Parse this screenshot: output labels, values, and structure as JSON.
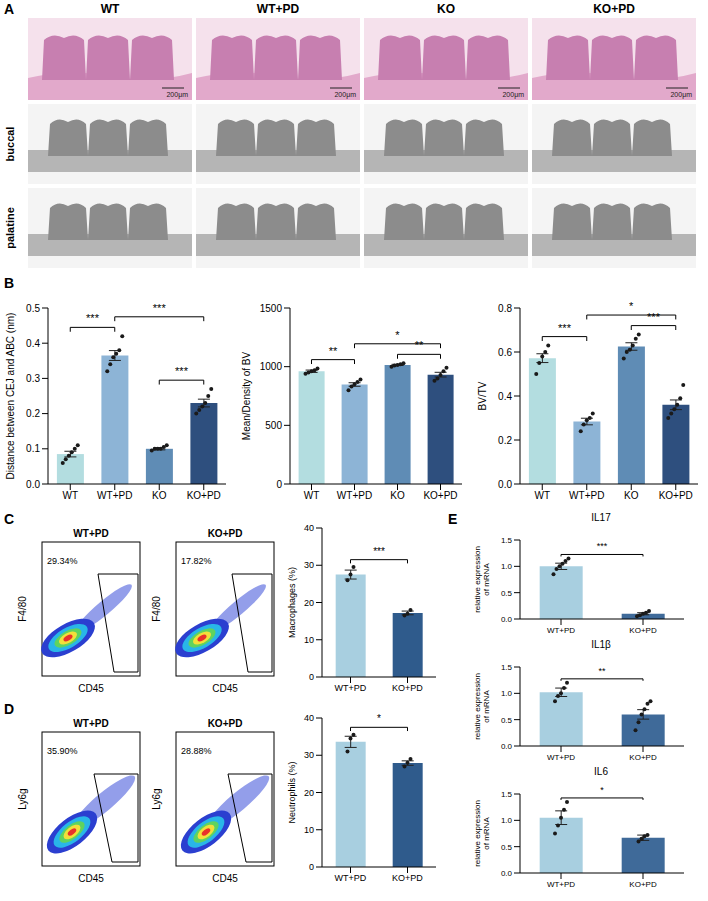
{
  "panel_A": {
    "letter": "A",
    "columns": [
      "WT",
      "WT+PD",
      "KO",
      "KO+PD"
    ],
    "rows": [
      "buccal",
      "palatine"
    ],
    "scale_bar": "200μm"
  },
  "flow_plots": [
    {
      "x_label": "CD45",
      "y_label": "F4/80",
      "plots": [
        {
          "title": "WT+PD",
          "gate": "29.34%"
        },
        {
          "title": "KO+PD",
          "gate": "17.82%"
        }
      ]
    },
    {
      "x_label": "CD45",
      "y_label": "Ly6g",
      "plots": [
        {
          "title": "WT+PD",
          "gate": "35.90%"
        },
        {
          "title": "KO+PD",
          "gate": "28.88%"
        }
      ]
    }
  ],
  "chart_data": [
    {
      "panel": "B",
      "type": "bar",
      "y_label": "Distance between CEJ and ABC (nm)",
      "categories": [
        "WT",
        "WT+PD",
        "KO",
        "KO+PD"
      ],
      "values": [
        0.085,
        0.365,
        0.1,
        0.23
      ],
      "errors": [
        0.008,
        0.014,
        0.003,
        0.011
      ],
      "points": [
        [
          0.06,
          0.07,
          0.08,
          0.09,
          0.1,
          0.11
        ],
        [
          0.32,
          0.34,
          0.36,
          0.37,
          0.38,
          0.42
        ],
        [
          0.095,
          0.1,
          0.1,
          0.1,
          0.105,
          0.11
        ],
        [
          0.2,
          0.21,
          0.22,
          0.23,
          0.25,
          0.27
        ]
      ],
      "colors": [
        "#b3dde0",
        "#8db4d6",
        "#5f8cb5",
        "#2e4f7e"
      ],
      "ylim": [
        0,
        0.5
      ],
      "yticks": [
        {
          "value": 0,
          "label": "0.0"
        },
        0.1,
        0.2,
        0.3,
        0.4,
        0.5
      ],
      "comparisons": [
        {
          "pair": [
            "WT",
            "WT+PD"
          ],
          "label": "***"
        },
        {
          "pair": [
            "WT+PD",
            "KO+PD"
          ],
          "label": "***"
        },
        {
          "pair": [
            "KO",
            "KO+PD"
          ],
          "label": "***"
        }
      ]
    },
    {
      "panel": "B",
      "type": "bar",
      "y_label": "Mean/Density of BV",
      "categories": [
        "WT",
        "WT+PD",
        "KO",
        "KO+PD"
      ],
      "values": [
        961,
        848,
        1015,
        932
      ],
      "errors": [
        10,
        15,
        5,
        20
      ],
      "points": [
        [
          940,
          950,
          960,
          970,
          985
        ],
        [
          800,
          830,
          850,
          870,
          890
        ],
        [
          1000,
          1010,
          1015,
          1020,
          1030
        ],
        [
          880,
          900,
          930,
          960,
          990
        ]
      ],
      "colors": [
        "#b3dde0",
        "#8db4d6",
        "#5f8cb5",
        "#2e4f7e"
      ],
      "ylim": [
        0,
        1500
      ],
      "yticks": [
        0,
        500,
        1000,
        1500
      ],
      "comparisons": [
        {
          "pair": [
            "WT",
            "WT+PD"
          ],
          "label": "**"
        },
        {
          "pair": [
            "WT+PD",
            "KO+PD"
          ],
          "label": "*"
        },
        {
          "pair": [
            "KO",
            "KO+PD"
          ],
          "label": "**"
        }
      ]
    },
    {
      "panel": "B",
      "type": "bar",
      "y_label": "BV/TV",
      "categories": [
        "WT",
        "WT+PD",
        "KO",
        "KO+PD"
      ],
      "values": [
        0.572,
        0.284,
        0.625,
        0.36
      ],
      "errors": [
        0.02,
        0.015,
        0.017,
        0.022
      ],
      "points": [
        [
          0.5,
          0.55,
          0.58,
          0.6,
          0.63
        ],
        [
          0.24,
          0.27,
          0.29,
          0.3,
          0.32
        ],
        [
          0.57,
          0.6,
          0.61,
          0.63,
          0.66,
          0.68
        ],
        [
          0.3,
          0.32,
          0.34,
          0.36,
          0.39,
          0.45
        ]
      ],
      "colors": [
        "#b3dde0",
        "#8db4d6",
        "#5f8cb5",
        "#2e4f7e"
      ],
      "ylim": [
        0,
        0.8
      ],
      "yticks": [
        {
          "value": 0,
          "label": "0.0"
        },
        0.2,
        0.4,
        0.6,
        0.8
      ],
      "comparisons": [
        {
          "pair": [
            "WT",
            "WT+PD"
          ],
          "label": "***"
        },
        {
          "pair": [
            "WT+PD",
            "KO+PD"
          ],
          "label": "*"
        },
        {
          "pair": [
            "KO",
            "KO+PD"
          ],
          "label": "***"
        }
      ]
    },
    {
      "panel": "C",
      "type": "bar",
      "y_label": "Macrophages (%)",
      "categories": [
        "WT+PD",
        "KO+PD"
      ],
      "values": [
        27.5,
        17.2
      ],
      "errors": [
        1.2,
        0.5
      ],
      "points": [
        [
          26,
          27.5,
          29.5
        ],
        [
          16.5,
          17,
          18
        ]
      ],
      "colors": [
        "#a8cfe0",
        "#2f5b8c"
      ],
      "ylim": [
        0,
        40
      ],
      "yticks": [
        0,
        10,
        20,
        30,
        40
      ],
      "comparisons": [
        {
          "pair": [
            "WT+PD",
            "KO+PD"
          ],
          "label": "***"
        }
      ]
    },
    {
      "panel": "D",
      "type": "bar",
      "y_label": "Neutrophils (%)",
      "categories": [
        "WT+PD",
        "KO+PD"
      ],
      "values": [
        33.6,
        27.9
      ],
      "errors": [
        1.5,
        0.6
      ],
      "points": [
        [
          31,
          34.5,
          35.5
        ],
        [
          27,
          28,
          29
        ]
      ],
      "colors": [
        "#a8cfe0",
        "#2f5b8c"
      ],
      "ylim": [
        0,
        40
      ],
      "yticks": [
        0,
        10,
        20,
        30,
        40
      ],
      "comparisons": [
        {
          "pair": [
            "WT+PD",
            "KO+PD"
          ],
          "label": "*"
        }
      ]
    },
    {
      "panel": "E",
      "type": "bar",
      "title": "IL17",
      "y_label": "relative expression of mRNA",
      "categories": [
        "WT+PD",
        "KO+PD"
      ],
      "values": [
        1.0,
        0.1
      ],
      "errors": [
        0.06,
        0.02
      ],
      "points": [
        [
          0.85,
          0.95,
          1.0,
          1.05,
          1.1,
          1.15
        ],
        [
          0.05,
          0.07,
          0.1,
          0.12,
          0.15
        ]
      ],
      "colors": [
        "#a8cfe0",
        "#3f6a99"
      ],
      "ylim": [
        0,
        1.5
      ],
      "yticks": [
        {
          "value": 0,
          "label": "0.0"
        },
        0.5,
        {
          "value": 1,
          "label": "1.0"
        },
        1.5
      ],
      "comparisons": [
        {
          "pair": [
            "WT+PD",
            "KO+PD"
          ],
          "label": "***"
        }
      ]
    },
    {
      "panel": "E",
      "type": "bar",
      "title": "IL1β",
      "y_label": "relative expression of mRNA",
      "categories": [
        "WT+PD",
        "KO+PD"
      ],
      "values": [
        1.02,
        0.6
      ],
      "errors": [
        0.08,
        0.09
      ],
      "points": [
        [
          0.85,
          0.95,
          1.0,
          1.1,
          1.2
        ],
        [
          0.3,
          0.45,
          0.6,
          0.7,
          0.8,
          0.85
        ]
      ],
      "colors": [
        "#a8cfe0",
        "#3f6a99"
      ],
      "ylim": [
        0,
        1.5
      ],
      "yticks": [
        {
          "value": 0,
          "label": "0.0"
        },
        0.5,
        {
          "value": 1,
          "label": "1.0"
        },
        1.5
      ],
      "comparisons": [
        {
          "pair": [
            "WT+PD",
            "KO+PD"
          ],
          "label": "**"
        }
      ]
    },
    {
      "panel": "E",
      "type": "bar",
      "title": "IL6",
      "y_label": "relative expression of mRNA",
      "categories": [
        "WT+PD",
        "KO+PD"
      ],
      "values": [
        1.05,
        0.67
      ],
      "errors": [
        0.13,
        0.05
      ],
      "points": [
        [
          0.75,
          0.9,
          1.05,
          1.2,
          1.35
        ],
        [
          0.6,
          0.65,
          0.7,
          0.72
        ]
      ],
      "colors": [
        "#a8cfe0",
        "#3f6a99"
      ],
      "ylim": [
        0,
        1.5
      ],
      "yticks": [
        {
          "value": 0,
          "label": "0.0"
        },
        0.5,
        {
          "value": 1,
          "label": "1.0"
        },
        1.5
      ],
      "comparisons": [
        {
          "pair": [
            "WT+PD",
            "KO+PD"
          ],
          "label": "*"
        }
      ]
    }
  ]
}
